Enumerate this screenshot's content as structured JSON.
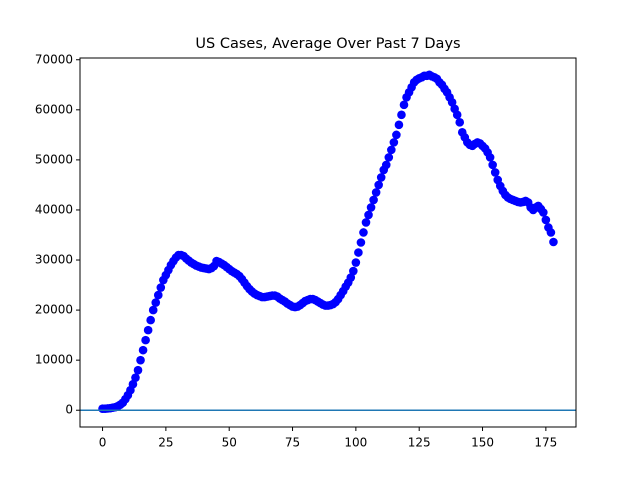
{
  "chart_data": {
    "type": "scatter",
    "title": "US Cases, Average Over Past 7 Days",
    "x": [
      0,
      1,
      2,
      3,
      4,
      5,
      6,
      7,
      8,
      9,
      10,
      11,
      12,
      13,
      14,
      15,
      16,
      17,
      18,
      19,
      20,
      21,
      22,
      23,
      24,
      25,
      26,
      27,
      28,
      29,
      30,
      31,
      32,
      33,
      34,
      35,
      36,
      37,
      38,
      39,
      40,
      41,
      42,
      43,
      44,
      45,
      46,
      47,
      48,
      49,
      50,
      51,
      52,
      53,
      54,
      55,
      56,
      57,
      58,
      59,
      60,
      61,
      62,
      63,
      64,
      65,
      66,
      67,
      68,
      69,
      70,
      71,
      72,
      73,
      74,
      75,
      76,
      77,
      78,
      79,
      80,
      81,
      82,
      83,
      84,
      85,
      86,
      87,
      88,
      89,
      90,
      91,
      92,
      93,
      94,
      95,
      96,
      97,
      98,
      99,
      100,
      101,
      102,
      103,
      104,
      105,
      106,
      107,
      108,
      109,
      110,
      111,
      112,
      113,
      114,
      115,
      116,
      117,
      118,
      119,
      120,
      121,
      122,
      123,
      124,
      125,
      126,
      127,
      128,
      129,
      130,
      131,
      132,
      133,
      134,
      135,
      136,
      137,
      138,
      139,
      140,
      141,
      142,
      143,
      144,
      145,
      146,
      147,
      148,
      149,
      150,
      151,
      152,
      153,
      154,
      155,
      156,
      157,
      158,
      159,
      160,
      161,
      162,
      163,
      164,
      165,
      166,
      167,
      168,
      169,
      170,
      171,
      172,
      173,
      174,
      175,
      176,
      177,
      178
    ],
    "values": [
      300,
      300,
      350,
      400,
      500,
      600,
      800,
      1100,
      1500,
      2200,
      3000,
      4000,
      5200,
      6500,
      8000,
      10000,
      12000,
      14000,
      16000,
      18000,
      20000,
      21500,
      23000,
      24500,
      26000,
      27000,
      28000,
      29000,
      29800,
      30500,
      31000,
      31000,
      30800,
      30300,
      29900,
      29500,
      29200,
      28900,
      28700,
      28500,
      28400,
      28300,
      28200,
      28400,
      28800,
      29800,
      29600,
      29300,
      29000,
      28600,
      28200,
      27800,
      27500,
      27200,
      26800,
      26200,
      25500,
      24800,
      24200,
      23700,
      23300,
      23000,
      22800,
      22600,
      22600,
      22700,
      22800,
      22900,
      22900,
      22700,
      22300,
      22000,
      21700,
      21300,
      21000,
      20700,
      20600,
      20700,
      21000,
      21400,
      21800,
      22000,
      22200,
      22200,
      22000,
      21700,
      21400,
      21100,
      20900,
      20900,
      21000,
      21200,
      21600,
      22200,
      23000,
      23800,
      24700,
      25500,
      26500,
      27800,
      29500,
      31500,
      33500,
      35500,
      37500,
      39000,
      40500,
      42000,
      43500,
      45000,
      46500,
      48000,
      49000,
      50500,
      52000,
      53500,
      55000,
      57000,
      59000,
      61000,
      62500,
      63500,
      64500,
      65500,
      66000,
      66300,
      66500,
      66800,
      66800,
      67000,
      66700,
      66500,
      66200,
      65500,
      65000,
      64200,
      63500,
      62500,
      61500,
      60200,
      59000,
      57500,
      55500,
      54500,
      53500,
      53000,
      52800,
      53200,
      53500,
      53300,
      52800,
      52300,
      51500,
      50500,
      49000,
      47500,
      46000,
      44800,
      43800,
      43000,
      42500,
      42200,
      42000,
      41800,
      41600,
      41500,
      41600,
      41800,
      41500,
      40500,
      40000,
      40500,
      40800,
      40200,
      39500,
      38000,
      36500,
      35500,
      33600
    ],
    "color": "#0000ff",
    "hline": 0,
    "hline_color": "#1f77b4",
    "xlim": [
      -8.9,
      186.9
    ],
    "xticks": [
      0,
      25,
      50,
      75,
      100,
      125,
      150,
      175
    ],
    "ylim": [
      -3350,
      70350
    ],
    "yticks": [
      0,
      10000,
      20000,
      30000,
      40000,
      50000,
      60000,
      70000
    ],
    "grid": false
  }
}
